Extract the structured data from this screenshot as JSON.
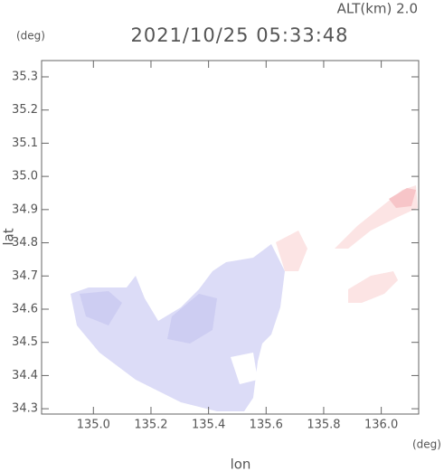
{
  "chart_data": {
    "type": "map",
    "title": "2021/10/25 05:33:48",
    "altitude_label": "ALT(km) 2.0",
    "xlabel": "lon",
    "ylabel": "lat",
    "xunit": "(deg)",
    "yunit": "(deg)",
    "xlim": [
      134.82,
      136.13
    ],
    "ylim": [
      34.284,
      35.349
    ],
    "xticks": [
      {
        "value": 135,
        "label": "135.0"
      },
      135.2,
      135.4,
      135.6,
      135.8,
      {
        "value": 136,
        "label": "136.0"
      }
    ],
    "yticks": [
      34.3,
      34.4,
      34.5,
      34.6,
      34.7,
      34.8,
      34.9,
      {
        "value": 35,
        "label": "35.0"
      },
      35.1,
      35.2,
      35.3
    ]
  }
}
